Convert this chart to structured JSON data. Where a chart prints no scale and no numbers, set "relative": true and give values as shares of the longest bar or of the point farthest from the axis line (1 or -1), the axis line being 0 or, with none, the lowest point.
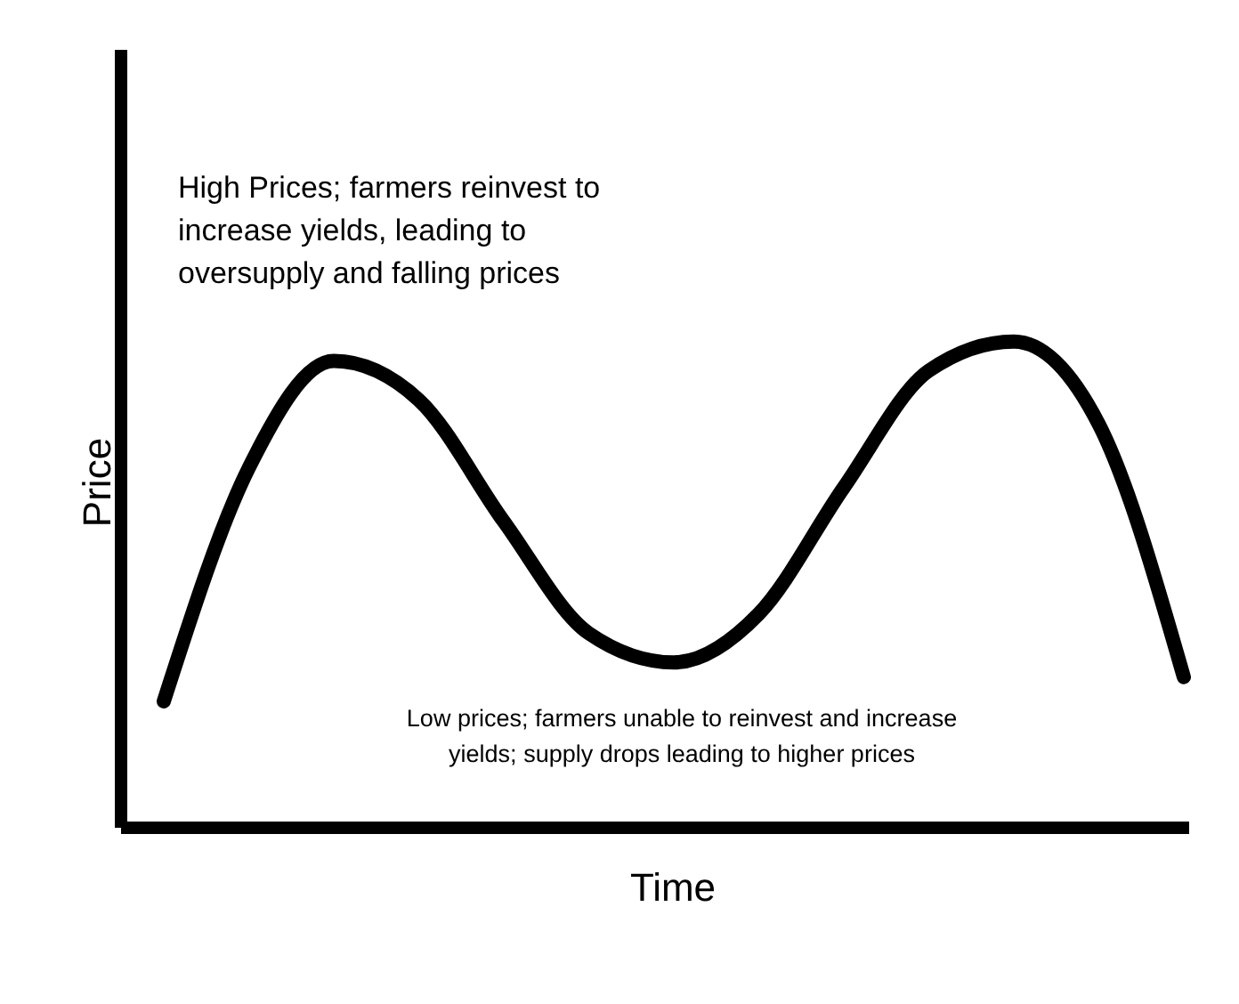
{
  "chart_data": {
    "type": "line",
    "relative": true,
    "xlabel": "Time",
    "ylabel": "Price",
    "color": "#000000",
    "marker": "none",
    "line_style": "solid",
    "grid": false,
    "legend": false,
    "categories": [
      null,
      null,
      null,
      null,
      null,
      null,
      null,
      null,
      null,
      null,
      null,
      null,
      null
    ],
    "values": [
      0.26,
      0.74,
      0.96,
      0.88,
      0.63,
      0.4,
      0.34,
      0.44,
      0.7,
      0.94,
      1,
      0.83,
      0.31
    ],
    "annotations": [
      "High Prices; farmers reinvest to increase yields, leading to oversupply and falling prices",
      "Low prices; farmers unable to reinvest and increase yields; supply drops leading to higher prices"
    ]
  }
}
